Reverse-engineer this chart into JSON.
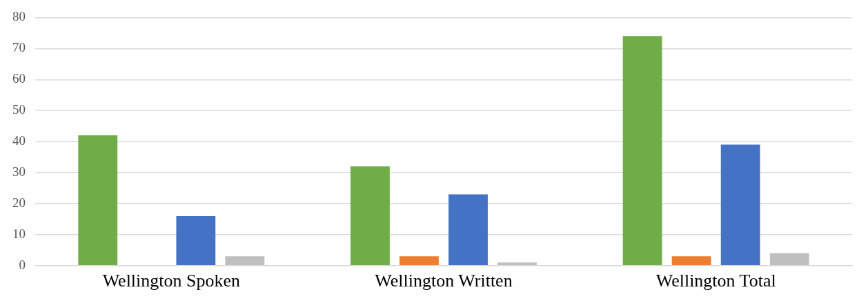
{
  "chart_data": {
    "type": "bar",
    "categories": [
      "Wellington Spoken",
      "Wellington Written",
      "Wellington Total"
    ],
    "series": [
      {
        "color": "#70ad47",
        "values": [
          42,
          32,
          74
        ]
      },
      {
        "color": "#ed7d31",
        "values": [
          null,
          3,
          3
        ]
      },
      {
        "color": "#4472c4",
        "values": [
          16,
          23,
          39
        ]
      },
      {
        "color": "#bfbfbf",
        "values": [
          3,
          1,
          4
        ]
      }
    ],
    "ylim": [
      0,
      80
    ],
    "yticks": [
      0,
      10,
      20,
      30,
      40,
      50,
      60,
      70,
      80
    ],
    "grid": "y",
    "legend": false
  }
}
